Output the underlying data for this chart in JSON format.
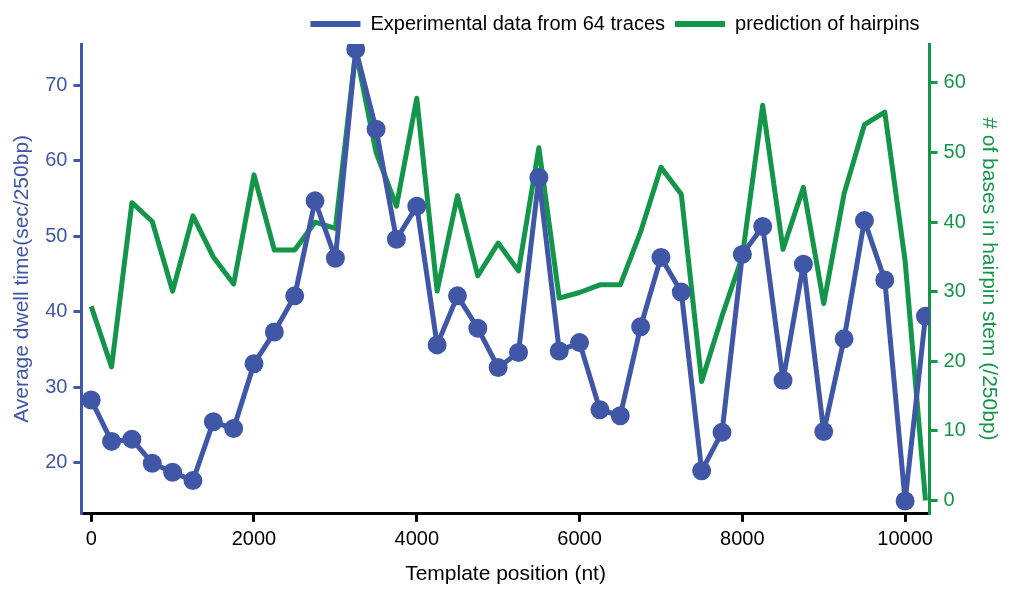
{
  "chart_data": {
    "type": "line",
    "xlabel": "Template position (nt)",
    "ylabel": "Average dwell time(sec/250bp)",
    "y2label": "# of bases in hairpin stem (/250bp)",
    "x": [
      0,
      250,
      500,
      750,
      1000,
      1250,
      1500,
      1750,
      2000,
      2250,
      2500,
      2750,
      3000,
      3250,
      3500,
      3750,
      4000,
      4250,
      4500,
      4750,
      5000,
      5250,
      5500,
      5750,
      6000,
      6250,
      6500,
      6750,
      7000,
      7250,
      7500,
      7750,
      8000,
      8250,
      8500,
      8750,
      9000,
      9250,
      9500,
      9750,
      10000,
      10250
    ],
    "series": [
      {
        "name": "Experimental data from 64 traces",
        "color": "#3f57a6",
        "marker": "circle",
        "values": [
          28.3,
          22.8,
          23.1,
          19.9,
          18.7,
          17.6,
          25.4,
          24.5,
          33.1,
          37.3,
          42.1,
          54.7,
          47.1,
          74.8,
          64.2,
          49.6,
          54.0,
          35.6,
          42.1,
          37.8,
          32.6,
          34.6,
          57.8,
          34.8,
          35.9,
          27.0,
          26.2,
          38.0,
          47.2,
          42.6,
          18.9,
          24.0,
          47.6,
          51.3,
          30.9,
          46.3,
          24.1,
          36.4,
          52.1,
          44.2,
          14.9,
          39.4
        ]
      },
      {
        "name": "prediction of hairpins",
        "color": "#14964a",
        "marker": "none",
        "axis": "y2",
        "values": [
          27.9,
          19.2,
          42.8,
          40.1,
          30.1,
          40.9,
          35,
          31.1,
          46.8,
          36,
          36,
          40,
          39.1,
          64.6,
          50,
          42.3,
          57.8,
          30.1,
          43.8,
          32.3,
          37,
          33,
          50.7,
          29.1,
          29.9,
          31,
          31,
          38.6,
          47.9,
          44,
          17.1,
          26.5,
          35.1,
          56.8,
          36.1,
          45,
          28.3,
          44.1,
          54,
          55.8,
          34.4,
          0
        ]
      }
    ],
    "xlim": [
      -120,
      10300
    ],
    "xticks": [
      0,
      2000,
      4000,
      6000,
      8000,
      10000
    ],
    "ylim": [
      13.2,
      75.5
    ],
    "yticks": [
      20,
      30,
      40,
      50,
      60,
      70
    ],
    "y2lim": [
      -1.9,
      65.6
    ],
    "y2ticks": [
      0,
      10,
      20,
      30,
      40,
      50,
      60
    ],
    "legend": "top right",
    "grid": false
  }
}
